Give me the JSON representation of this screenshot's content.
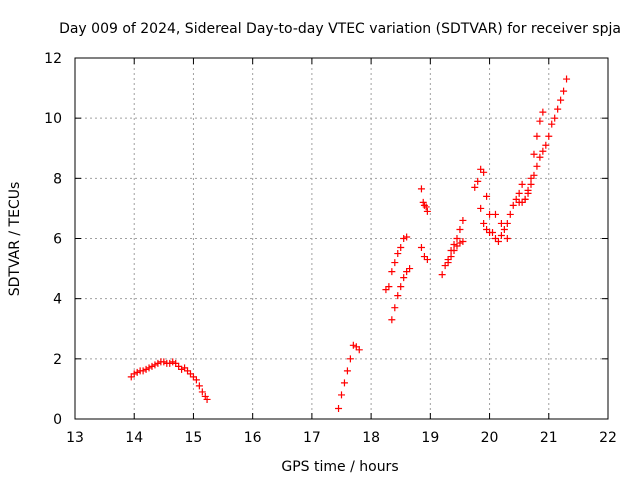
{
  "chart_data": {
    "type": "scatter",
    "title": "Day 009 of 2024, Sidereal Day-to-day VTEC variation (SDTVAR) for receiver spja",
    "xlabel": "GPS time / hours",
    "ylabel": "SDTVAR / TECUs",
    "xlim": [
      13,
      22
    ],
    "ylim": [
      0,
      12
    ],
    "xticks": [
      "13",
      "14",
      "15",
      "16",
      "17",
      "18",
      "19",
      "20",
      "21",
      "22"
    ],
    "yticks": [
      "0",
      "2",
      "4",
      "6",
      "8",
      "10",
      "12"
    ],
    "grid": true,
    "marker": "+",
    "color": "#ff0000",
    "series": [
      {
        "x": [
          13.95,
          14.0,
          14.05,
          14.1,
          14.15,
          14.2,
          14.25,
          14.3,
          14.35,
          14.4,
          14.45,
          14.5,
          14.55,
          14.6,
          14.65,
          14.7,
          14.75,
          14.8,
          14.85,
          14.9,
          14.95,
          15.0,
          15.05,
          15.1,
          15.15,
          15.2,
          15.23,
          17.45,
          17.5,
          17.55,
          17.6,
          17.65,
          17.7,
          17.75,
          17.8,
          18.25,
          18.3,
          18.35,
          18.4,
          18.45,
          18.5,
          18.55,
          18.6,
          18.35,
          18.4,
          18.45,
          18.5,
          18.55,
          18.6,
          18.65,
          18.85,
          18.88,
          18.9,
          18.93,
          18.95,
          18.85,
          18.9,
          18.95,
          19.2,
          19.25,
          19.3,
          19.35,
          19.4,
          19.45,
          19.5,
          19.55,
          19.3,
          19.35,
          19.4,
          19.45,
          19.5,
          19.55,
          19.75,
          19.8,
          19.85,
          19.9,
          19.95,
          19.85,
          19.9,
          19.95,
          20.0,
          20.05,
          20.1,
          20.15,
          20.2,
          20.25,
          20.3,
          20.35,
          20.4,
          20.45,
          20.5,
          20.55,
          20.0,
          20.1,
          20.2,
          20.3,
          20.5,
          20.55,
          20.6,
          20.65,
          20.7,
          20.75,
          20.8,
          20.85,
          20.9,
          20.6,
          20.65,
          20.7,
          20.75,
          20.8,
          20.85,
          20.9,
          20.95,
          21.0,
          21.05,
          21.1,
          21.15,
          21.2,
          21.25,
          21.3
        ],
        "y": [
          1.4,
          1.5,
          1.55,
          1.6,
          1.6,
          1.65,
          1.7,
          1.75,
          1.8,
          1.85,
          1.9,
          1.9,
          1.85,
          1.85,
          1.9,
          1.85,
          1.75,
          1.65,
          1.7,
          1.6,
          1.5,
          1.4,
          1.3,
          1.1,
          0.9,
          0.75,
          0.65,
          0.35,
          0.8,
          1.2,
          1.6,
          2.0,
          2.45,
          2.4,
          2.3,
          4.3,
          4.4,
          4.9,
          5.2,
          5.5,
          5.7,
          6.0,
          6.05,
          3.3,
          3.7,
          4.1,
          4.4,
          4.7,
          4.9,
          5.0,
          7.65,
          7.2,
          7.1,
          7.05,
          6.9,
          5.7,
          5.4,
          5.3,
          4.8,
          5.1,
          5.3,
          5.6,
          5.8,
          6.0,
          6.3,
          6.6,
          5.2,
          5.4,
          5.6,
          5.75,
          5.85,
          5.9,
          7.7,
          7.9,
          8.3,
          8.2,
          7.4,
          7.0,
          6.5,
          6.3,
          6.2,
          6.2,
          6.0,
          5.9,
          6.1,
          6.3,
          6.5,
          6.8,
          7.1,
          7.3,
          7.5,
          7.8,
          6.8,
          6.8,
          6.5,
          6.0,
          7.2,
          7.2,
          7.3,
          7.6,
          8.0,
          8.8,
          9.4,
          9.9,
          10.2,
          7.3,
          7.5,
          7.8,
          8.1,
          8.4,
          8.7,
          8.9,
          9.1,
          9.4,
          9.8,
          10.0,
          10.3,
          10.6,
          10.9,
          11.3
        ]
      }
    ]
  }
}
